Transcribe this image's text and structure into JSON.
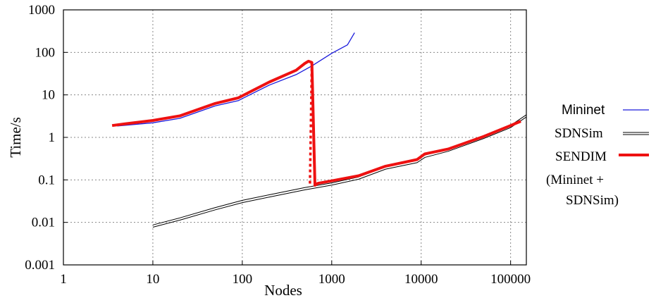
{
  "chart_data": {
    "type": "line",
    "title": "",
    "xlabel": "Nodes",
    "ylabel": "Time/s",
    "x_scale": "log",
    "y_scale": "log",
    "xlim": [
      1,
      150000
    ],
    "ylim": [
      0.001,
      1000
    ],
    "grid": true,
    "legend_placement": "right",
    "x_ticks": [
      "1",
      "10",
      "100",
      "1000",
      "10000",
      "100000"
    ],
    "y_ticks": [
      "0.001",
      "0.01",
      "0.1",
      "1",
      "10",
      "100",
      "1000"
    ],
    "series": [
      {
        "name": "Mininet",
        "color": "#1a1adc",
        "style": "thin",
        "points": [
          [
            4,
            1.85
          ],
          [
            6,
            2.0
          ],
          [
            10,
            2.2
          ],
          [
            20,
            2.8
          ],
          [
            50,
            5.5
          ],
          [
            90,
            7.3
          ],
          [
            100,
            8.2
          ],
          [
            200,
            17
          ],
          [
            400,
            30
          ],
          [
            600,
            48
          ],
          [
            1000,
            95
          ],
          [
            1500,
            150
          ],
          [
            1800,
            290
          ]
        ]
      },
      {
        "name": "SDNSim",
        "color": "#000000",
        "style": "double",
        "points": [
          [
            10,
            0.0082
          ],
          [
            20,
            0.012
          ],
          [
            50,
            0.021
          ],
          [
            100,
            0.031
          ],
          [
            200,
            0.042
          ],
          [
            500,
            0.062
          ],
          [
            1000,
            0.08
          ],
          [
            2000,
            0.11
          ],
          [
            4000,
            0.19
          ],
          [
            9000,
            0.27
          ],
          [
            11000,
            0.36
          ],
          [
            20000,
            0.5
          ],
          [
            50000,
            1.0
          ],
          [
            100000,
            1.8
          ],
          [
            150000,
            3.2
          ]
        ]
      },
      {
        "name": "SENDIM",
        "label_lines": [
          "(Mininet +",
          "SDNSim)"
        ],
        "color": "#ee1111",
        "style": "thick",
        "points": [
          [
            3.5,
            1.9
          ],
          [
            5,
            2.1
          ],
          [
            10,
            2.5
          ],
          [
            20,
            3.2
          ],
          [
            50,
            6.3
          ],
          [
            90,
            8.5
          ],
          [
            100,
            9.5
          ],
          [
            200,
            20
          ],
          [
            400,
            38
          ],
          [
            500,
            55
          ],
          [
            550,
            62
          ],
          [
            600,
            58
          ],
          [
            650,
            0.075
          ],
          [
            700,
            0.083
          ],
          [
            1000,
            0.095
          ],
          [
            2000,
            0.125
          ],
          [
            4000,
            0.21
          ],
          [
            9000,
            0.3
          ],
          [
            11000,
            0.41
          ],
          [
            20000,
            0.53
          ],
          [
            50000,
            1.05
          ],
          [
            100000,
            1.9
          ],
          [
            130000,
            2.4
          ]
        ],
        "dotted_drop": [
          [
            600,
            58
          ],
          [
            570,
            0.07
          ]
        ]
      }
    ]
  }
}
